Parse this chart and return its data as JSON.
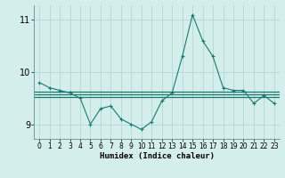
{
  "x": [
    0,
    1,
    2,
    3,
    4,
    5,
    6,
    7,
    8,
    9,
    10,
    11,
    12,
    13,
    14,
    15,
    16,
    17,
    18,
    19,
    20,
    21,
    22,
    23
  ],
  "line1": [
    9.8,
    9.7,
    9.65,
    9.6,
    9.5,
    9.0,
    9.3,
    9.35,
    9.1,
    9.0,
    8.9,
    9.05,
    9.45,
    9.6,
    10.3,
    11.1,
    10.6,
    10.3,
    9.7,
    9.65,
    9.65,
    9.4,
    9.55,
    9.4
  ],
  "flat1": 9.62,
  "flat2": 9.58,
  "flat3": 9.53,
  "line_color": "#1a7a6e",
  "bg_color": "#d4eeec",
  "grid_color": "#aad4d0",
  "ylim": [
    8.72,
    11.28
  ],
  "yticks": [
    9,
    10,
    11
  ],
  "xticks": [
    0,
    1,
    2,
    3,
    4,
    5,
    6,
    7,
    8,
    9,
    10,
    11,
    12,
    13,
    14,
    15,
    16,
    17,
    18,
    19,
    20,
    21,
    22,
    23
  ],
  "xlabel": "Humidex (Indice chaleur)",
  "xlabel_fontsize": 6.5,
  "tick_fontsize": 5.5,
  "ytick_fontsize": 7.0
}
